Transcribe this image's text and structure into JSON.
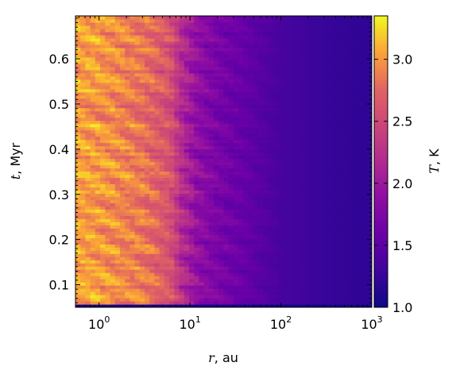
{
  "chart_data": {
    "type": "heatmap",
    "title": "",
    "x_axis": {
      "label_symbol": "r",
      "label_unit": ", au",
      "scale": "log",
      "range": [
        0.55,
        1000
      ],
      "major_ticks": [
        {
          "value": 1,
          "base": "10",
          "exp": "0"
        },
        {
          "value": 10,
          "base": "10",
          "exp": "1"
        },
        {
          "value": 100,
          "base": "10",
          "exp": "2"
        },
        {
          "value": 1000,
          "base": "10",
          "exp": "3"
        }
      ]
    },
    "y_axis": {
      "label_symbol": "t",
      "label_unit": ", Myr",
      "scale": "linear",
      "range": [
        0.05,
        0.695
      ],
      "ticks": [
        "0.1",
        "0.2",
        "0.3",
        "0.4",
        "0.5",
        "0.6"
      ],
      "tick_values": [
        0.1,
        0.2,
        0.3,
        0.4,
        0.5,
        0.6
      ]
    },
    "colorbar": {
      "label_symbol": "T",
      "label_unit": ", K",
      "colormap": "plasma",
      "range": [
        1.0,
        3.35
      ],
      "ticks": [
        "1.0",
        "1.5",
        "2.0",
        "2.5",
        "3.0"
      ],
      "tick_values": [
        1.0,
        1.5,
        2.0,
        2.5,
        3.0
      ]
    },
    "temperature_profile_description": {
      "r_au": [
        0.55,
        1,
        3,
        6,
        8,
        12,
        20,
        50,
        100,
        300,
        1000
      ],
      "T_K_typical": [
        3.05,
        3.0,
        2.85,
        2.6,
        2.2,
        1.9,
        1.7,
        1.5,
        1.35,
        1.25,
        1.2
      ]
    },
    "grid": false
  }
}
